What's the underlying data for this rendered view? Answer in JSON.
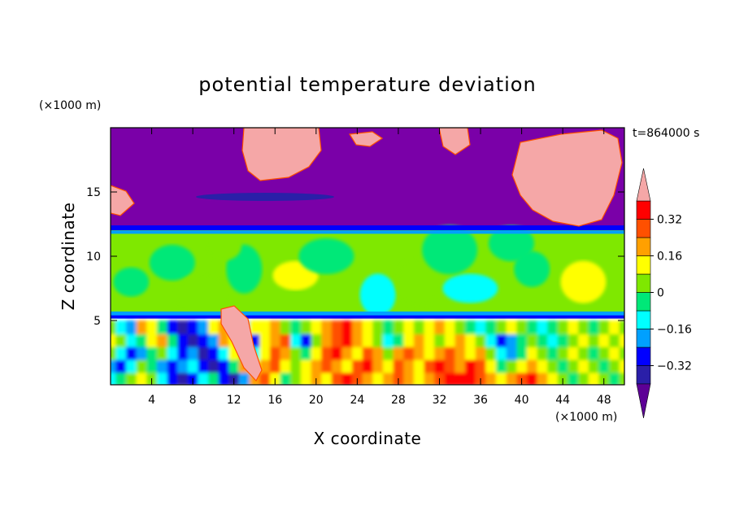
{
  "chart_data": {
    "type": "heatmap",
    "title": "potential temperature deviation",
    "xlabel": "X coordinate",
    "ylabel": "Z coordinate",
    "x_unit": "(×1000 m)",
    "y_unit": "(×1000 m)",
    "time_label": "t=864000 s",
    "xlim": [
      0,
      50
    ],
    "ylim": [
      0,
      20
    ],
    "x_ticks": [
      4,
      8,
      12,
      16,
      20,
      24,
      28,
      32,
      36,
      40,
      44,
      48
    ],
    "y_ticks": [
      5,
      10,
      15
    ],
    "colorbar": {
      "tick_values": [
        0.32,
        0.16,
        0,
        -0.16,
        -0.32
      ],
      "tick_labels": [
        "0.32",
        "0.16",
        "0",
        "−0.16",
        "−0.32"
      ],
      "levels": [
        -0.4,
        -0.32,
        -0.24,
        -0.16,
        -0.08,
        0,
        0.08,
        0.16,
        0.24,
        0.32,
        0.4
      ],
      "colors": [
        "#5d0096",
        "#2a1fa8",
        "#0000ff",
        "#00a0ff",
        "#00ffff",
        "#00e878",
        "#7fe800",
        "#ffff00",
        "#ffa000",
        "#ff5000",
        "#ff0000",
        "#f5a7a7"
      ],
      "extend": "both"
    },
    "layers": [
      {
        "z_range": [
          12.3,
          20
        ],
        "value": -0.45,
        "description_color": "#7a00a8"
      },
      {
        "z_range": [
          5.5,
          12.3
        ],
        "value": 0.05
      },
      {
        "z_range": [
          0,
          5.5
        ],
        "value": "mixed"
      }
    ],
    "x": [
      0,
      1,
      2,
      3,
      4,
      5,
      6,
      7,
      8,
      9,
      10,
      11,
      12,
      13,
      14,
      15,
      16,
      17,
      18,
      19,
      20,
      21,
      22,
      23,
      24,
      25,
      26,
      27,
      28,
      29,
      30,
      31,
      32,
      33,
      34,
      35,
      36,
      37,
      38,
      39,
      40,
      41,
      42,
      43,
      44,
      45,
      46,
      47,
      48,
      49,
      50
    ],
    "z_lower": [
      0.5,
      1.5,
      2.5,
      3.5,
      4.5
    ],
    "lower_values": [
      [
        -0.16,
        -0.08,
        0.0,
        0.08,
        0.0,
        -0.16,
        -0.32,
        -0.4,
        -0.32,
        -0.16,
        -0.08,
        -0.32,
        -0.4,
        -0.24,
        0.16,
        0.24,
        0.08,
        -0.08,
        0.0,
        0.08,
        0.16,
        0.08,
        0.24,
        0.32,
        0.24,
        0.16,
        0.08,
        0.16,
        0.24,
        0.16,
        0.08,
        0.16,
        0.24,
        0.32,
        0.38,
        0.32,
        0.24,
        0.16,
        0.08,
        0.16,
        0.24,
        0.32,
        0.16,
        0.08,
        0.0,
        -0.08,
        0.0,
        0.08,
        0.0,
        -0.08,
        0.0
      ],
      [
        -0.24,
        -0.32,
        -0.16,
        0.0,
        -0.08,
        -0.24,
        -0.32,
        -0.24,
        -0.16,
        -0.32,
        -0.4,
        -0.32,
        -0.08,
        0.16,
        0.08,
        0.16,
        0.24,
        0.08,
        0.0,
        0.08,
        0.16,
        0.24,
        0.16,
        0.08,
        0.24,
        0.32,
        0.16,
        0.08,
        0.24,
        0.16,
        0.08,
        0.24,
        0.32,
        0.24,
        0.16,
        0.32,
        0.24,
        0.08,
        -0.08,
        0.0,
        0.08,
        0.16,
        0.08,
        0.0,
        -0.08,
        0.0,
        0.08,
        0.0,
        -0.08,
        0.0,
        0.08
      ],
      [
        0.0,
        -0.16,
        -0.32,
        -0.24,
        -0.08,
        0.0,
        -0.16,
        -0.32,
        -0.24,
        -0.4,
        -0.32,
        -0.16,
        0.08,
        0.0,
        -0.16,
        0.08,
        0.24,
        0.16,
        0.0,
        -0.08,
        0.08,
        0.24,
        0.32,
        0.16,
        0.08,
        0.24,
        0.16,
        0.0,
        0.16,
        0.24,
        0.16,
        0.08,
        0.16,
        0.24,
        0.16,
        0.08,
        0.16,
        0.0,
        -0.16,
        -0.24,
        -0.08,
        0.08,
        0.0,
        -0.08,
        0.0,
        0.08,
        0.0,
        -0.08,
        0.0,
        0.08,
        0.0
      ],
      [
        0.08,
        0.0,
        -0.16,
        -0.08,
        0.08,
        0.16,
        -0.08,
        -0.32,
        -0.4,
        -0.32,
        -0.24,
        0.16,
        0.08,
        -0.16,
        -0.32,
        0.08,
        0.16,
        0.24,
        -0.16,
        -0.32,
        0.0,
        0.16,
        0.24,
        0.32,
        0.16,
        0.08,
        0.0,
        -0.16,
        -0.08,
        0.08,
        0.16,
        0.08,
        0.0,
        0.08,
        0.16,
        0.08,
        0.0,
        -0.16,
        -0.32,
        -0.24,
        -0.08,
        0.0,
        -0.08,
        -0.16,
        -0.08,
        0.0,
        0.08,
        0.0,
        0.08,
        0.0,
        0.08
      ],
      [
        0.0,
        -0.16,
        -0.24,
        0.16,
        0.08,
        -0.08,
        -0.32,
        -0.4,
        -0.32,
        -0.24,
        0.08,
        0.16,
        -0.08,
        -0.24,
        0.08,
        0.08,
        0.16,
        0.0,
        -0.08,
        0.0,
        0.08,
        0.16,
        0.24,
        0.32,
        0.16,
        0.08,
        0.0,
        -0.08,
        0.0,
        0.08,
        0.0,
        0.08,
        0.16,
        0.08,
        0.0,
        -0.08,
        -0.16,
        -0.08,
        0.0,
        0.08,
        0.0,
        -0.08,
        -0.16,
        -0.08,
        0.0,
        0.08,
        0.0,
        -0.08,
        0.0,
        0.08,
        0.0
      ]
    ]
  }
}
